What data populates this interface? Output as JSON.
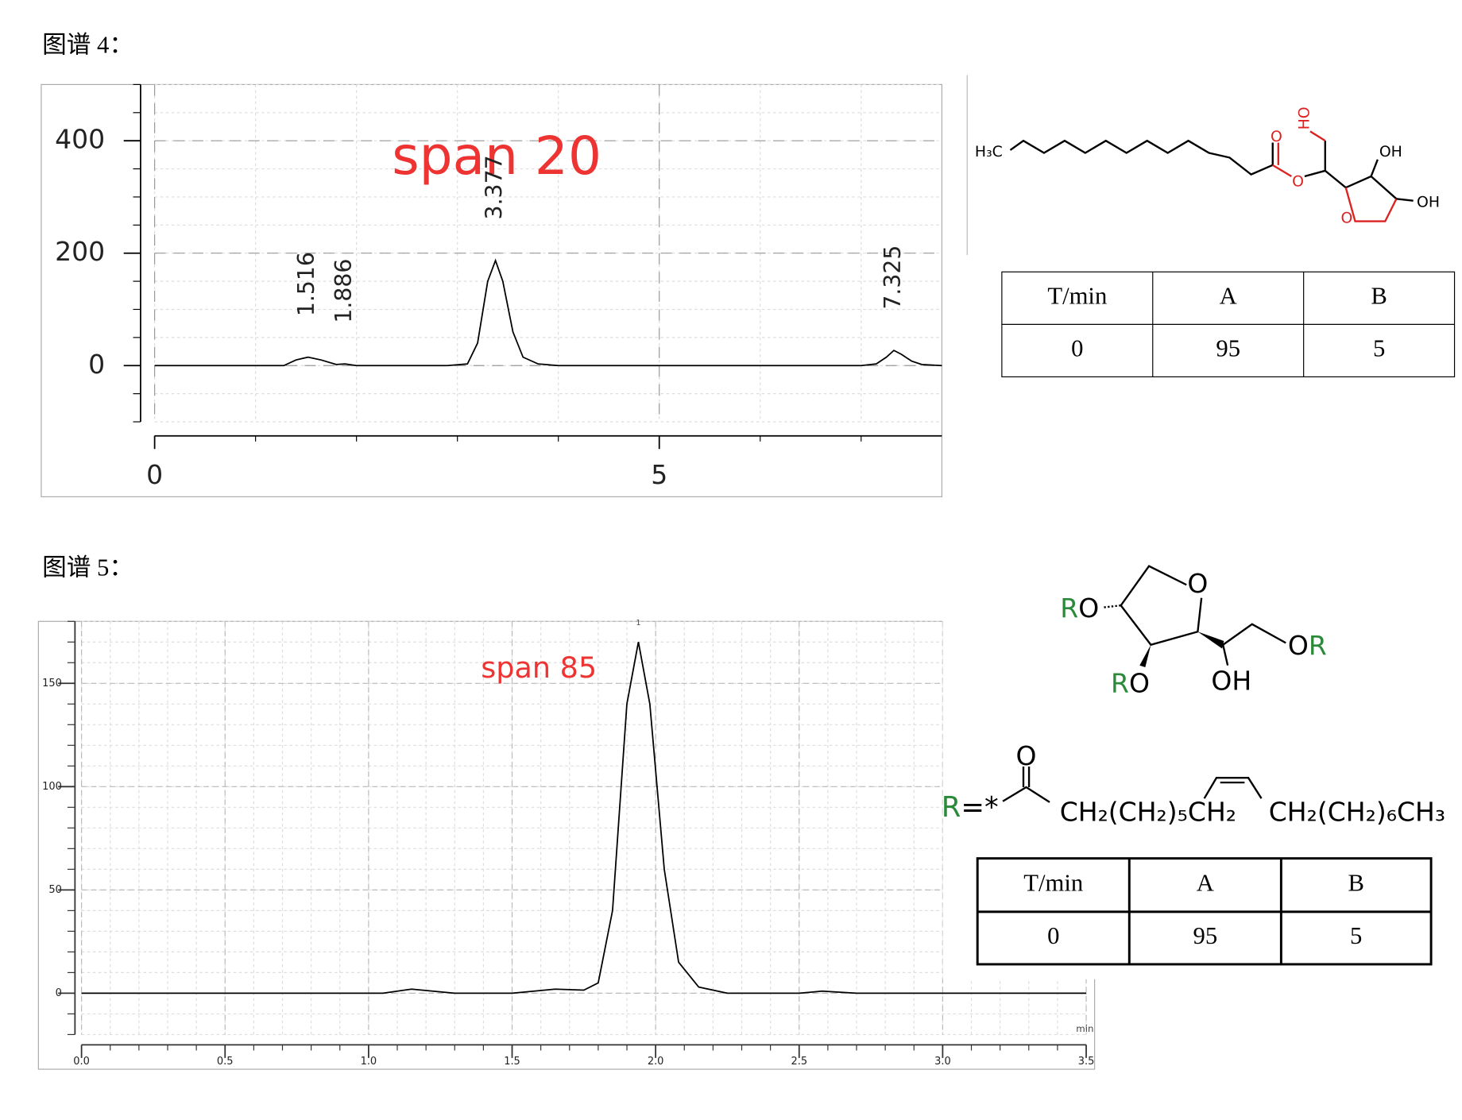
{
  "headings": [
    "图谱 4：",
    "图谱 5："
  ],
  "chart_data": [
    {
      "type": "line",
      "annotation": "span 20",
      "color": "#000000",
      "x": [
        0,
        1.28,
        1.4,
        1.52,
        1.65,
        1.8,
        1.886,
        2.0,
        2.9,
        3.1,
        3.2,
        3.3,
        3.377,
        3.45,
        3.55,
        3.65,
        3.8,
        4.0,
        7.0,
        7.15,
        7.25,
        7.325,
        7.4,
        7.5,
        7.6,
        7.8
      ],
      "values": [
        0,
        0,
        10,
        15,
        10,
        2,
        3,
        0,
        0,
        3,
        40,
        150,
        187,
        150,
        60,
        15,
        3,
        0,
        0,
        3,
        15,
        27,
        20,
        8,
        2,
        0
      ],
      "peak_labels": [
        1.516,
        1.886,
        3.377,
        7.325
      ],
      "xlim": [
        0,
        7.8
      ],
      "ylim": [
        -100,
        500
      ],
      "xticks": [
        0,
        5
      ],
      "yticks": [
        0,
        200,
        400
      ],
      "grid": true
    },
    {
      "type": "line",
      "annotation": "span 85",
      "peak_label": "1",
      "x_unit": "min",
      "color": "#000000",
      "x": [
        0,
        1.05,
        1.15,
        1.3,
        1.5,
        1.65,
        1.75,
        1.8,
        1.85,
        1.9,
        1.94,
        1.98,
        2.03,
        2.08,
        2.15,
        2.25,
        2.5,
        2.58,
        2.7,
        3.5
      ],
      "values": [
        0,
        0,
        2,
        0,
        0,
        2,
        1.5,
        5,
        40,
        140,
        170,
        140,
        60,
        15,
        3,
        0,
        0,
        1,
        0,
        0
      ],
      "xlim": [
        0,
        3.5
      ],
      "ylim": [
        -20,
        180
      ],
      "xticks": [
        {
          "value": 0,
          "label": "0.0"
        },
        0.5,
        {
          "value": 1,
          "label": "1.0"
        },
        1.5,
        {
          "value": 2,
          "label": "2.0"
        },
        2.5,
        {
          "value": 3,
          "label": "3.0"
        },
        3.5
      ],
      "yticks": [
        0,
        50,
        100,
        150
      ],
      "grid": true
    }
  ],
  "tables": [
    {
      "header": [
        "T/min",
        "A",
        "B"
      ],
      "rows": [
        [
          0,
          95,
          5
        ]
      ]
    },
    {
      "header": [
        "T/min",
        "A",
        "B"
      ],
      "rows": [
        [
          0,
          95,
          5
        ]
      ]
    }
  ],
  "structures": [
    {
      "labels": [
        "H₃C",
        "O",
        "O",
        "HO",
        "OH",
        "OH",
        "O"
      ]
    },
    {
      "labels": [
        "RO",
        "O",
        "OR",
        "RO",
        "OH",
        "O",
        "R=*",
        "CH₂(CH₂)₅CH₂",
        "CH₂(CH₂)₆CH₃"
      ]
    }
  ]
}
